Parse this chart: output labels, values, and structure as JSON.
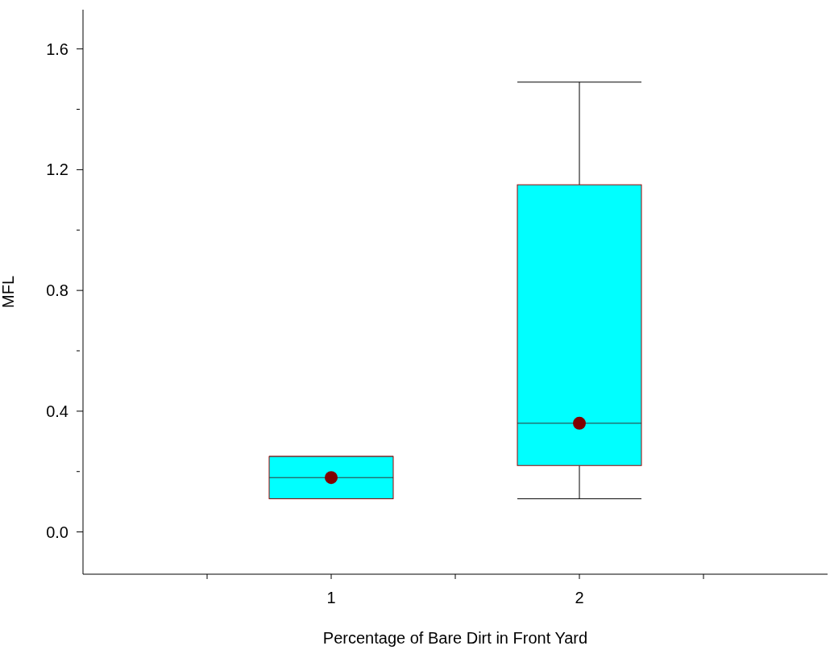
{
  "chart_data": {
    "type": "box",
    "xlabel": "Percentage of Bare Dirt in Front Yard",
    "ylabel": "MFL",
    "categories": [
      "1",
      "2"
    ],
    "series": [
      {
        "color": "#00ffff",
        "boxes": [
          {
            "low": 0.11,
            "q1": 0.11,
            "median": 0.18,
            "q3": 0.25,
            "high": 0.25,
            "mean": 0.18
          },
          {
            "low": 0.11,
            "q1": 0.22,
            "median": 0.36,
            "q3": 1.15,
            "high": 1.49,
            "mean": 0.36
          }
        ]
      }
    ],
    "ylim": [
      -0.14,
      1.73
    ],
    "yticks": [
      {
        "value": 0,
        "label": "0.0"
      },
      {
        "value": 0.2,
        "label": null
      },
      {
        "value": 0.4,
        "label": "0.4"
      },
      {
        "value": 0.6,
        "label": null
      },
      {
        "value": 0.8,
        "label": "0.8"
      },
      {
        "value": 1.0,
        "label": null
      },
      {
        "value": 1.2,
        "label": "1.2"
      },
      {
        "value": 1.4,
        "label": null
      },
      {
        "value": 1.6,
        "label": "1.6"
      }
    ],
    "grid": false,
    "legend": false
  }
}
